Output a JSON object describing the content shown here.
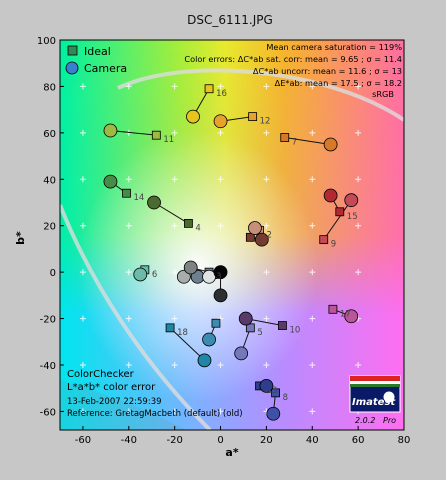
{
  "header": {
    "title": "DSC_6111.JPG"
  },
  "chart_data": {
    "type": "scatter",
    "title": "DSC_6111.JPG",
    "xlabel": "a*",
    "ylabel": "b*",
    "xlim": [
      -70,
      80
    ],
    "ylim": [
      -68,
      100
    ],
    "xticks": [
      -60,
      -40,
      -20,
      0,
      20,
      40,
      60,
      80
    ],
    "yticks": [
      -60,
      -40,
      -20,
      0,
      20,
      40,
      60,
      80,
      100
    ],
    "grid": "plus-markers",
    "legend": {
      "position": "top-left",
      "items": [
        {
          "label": "Ideal",
          "marker": "square",
          "color": "#2e8b57"
        },
        {
          "label": "Camera",
          "marker": "circle",
          "color": "#3a7fd0"
        }
      ]
    },
    "stats_lines": [
      "Mean camera saturation = 119%",
      "Color errors: ΔC*ab sat. corr:  mean = 9.65 ;  σ = 11.4",
      "ΔC*ab uncorr:  mean = 11.6 ;  σ = 13",
      "ΔE*ab:  mean = 17.5 ;  σ = 18.2",
      "sRGB"
    ],
    "bottom_left": {
      "name": "ColorChecker",
      "subtitle": "L*a*b* color error",
      "timestamp": "13-Feb-2007 22:59:39",
      "reference": "Reference: GretagMacbeth (default) (old)"
    },
    "logo": {
      "text": "Imatest",
      "version": "2.0.2",
      "edition": "Pro"
    },
    "patches": [
      {
        "id": "1",
        "ideal": [
          13,
          15
        ],
        "camera": [
          18,
          14
        ],
        "color": "#7a3b2e"
      },
      {
        "id": "2",
        "ideal": [
          17,
          18
        ],
        "camera": [
          15,
          19
        ],
        "color": "#c58f7a"
      },
      {
        "id": "3",
        "ideal": [
          -5,
          0
        ],
        "camera": [
          -10,
          -2
        ],
        "color": "#6e7f8f"
      },
      {
        "id": "4",
        "ideal": [
          -14,
          21
        ],
        "camera": [
          -29,
          30
        ],
        "color": "#4b6a2f"
      },
      {
        "id": "5",
        "ideal": [
          13,
          -24
        ],
        "camera": [
          9,
          -35
        ],
        "color": "#7477b8"
      },
      {
        "id": "6",
        "ideal": [
          -33,
          1
        ],
        "camera": [
          -35,
          -1
        ],
        "color": "#6bbbaa"
      },
      {
        "id": "7",
        "ideal": [
          28,
          58
        ],
        "camera": [
          48,
          55
        ],
        "color": "#d67a2a"
      },
      {
        "id": "8",
        "ideal": [
          24,
          -52
        ],
        "camera": [
          23,
          -61
        ],
        "color": "#3f50a8"
      },
      {
        "id": "9",
        "ideal": [
          45,
          14
        ],
        "camera": [
          57,
          31
        ],
        "color": "#c24b57"
      },
      {
        "id": "10",
        "ideal": [
          27,
          -23
        ],
        "camera": [
          11,
          -20
        ],
        "color": "#5a3a6a"
      },
      {
        "id": "11",
        "ideal": [
          -28,
          59
        ],
        "camera": [
          -48,
          61
        ],
        "color": "#9dbb42"
      },
      {
        "id": "12",
        "ideal": [
          14,
          67
        ],
        "camera": [
          0,
          65
        ],
        "color": "#e8a22c"
      },
      {
        "id": "13",
        "ideal": [
          17,
          -49
        ],
        "camera": [
          20,
          -49
        ],
        "color": "#2e3d8e"
      },
      {
        "id": "14",
        "ideal": [
          -41,
          34
        ],
        "camera": [
          -48,
          39
        ],
        "color": "#468c47"
      },
      {
        "id": "15",
        "ideal": [
          52,
          26
        ],
        "camera": [
          48,
          33
        ],
        "color": "#b12a32"
      },
      {
        "id": "16",
        "ideal": [
          -5,
          79
        ],
        "camera": [
          -12,
          67
        ],
        "color": "#e7c51f"
      },
      {
        "id": "17",
        "ideal": [
          49,
          -16
        ],
        "camera": [
          57,
          -19
        ],
        "color": "#bb5599"
      },
      {
        "id": "18",
        "ideal": [
          -22,
          -24
        ],
        "camera": [
          -7,
          -38
        ],
        "color": "#1f86a6"
      },
      {
        "id": "",
        "ideal": [
          -2,
          -22
        ],
        "camera": [
          -5,
          -29
        ],
        "color": "#3c8bb0"
      },
      {
        "id": "",
        "ideal": [
          -1,
          -1
        ],
        "camera": [
          -5,
          -2
        ],
        "color": "#dfe3e3"
      },
      {
        "id": "",
        "ideal": [
          -1,
          -1
        ],
        "camera": [
          -16,
          -2
        ],
        "color": "#a7acac"
      },
      {
        "id": "",
        "ideal": [
          -1,
          -1
        ],
        "camera": [
          -13,
          2
        ],
        "color": "#7d8282"
      },
      {
        "id": "",
        "ideal": [
          0,
          0
        ],
        "camera": [
          0,
          -10
        ],
        "color": "#2b2f30"
      },
      {
        "id": "",
        "ideal": [
          0,
          0
        ],
        "camera": [
          0,
          0
        ],
        "color": "#050505"
      }
    ]
  }
}
